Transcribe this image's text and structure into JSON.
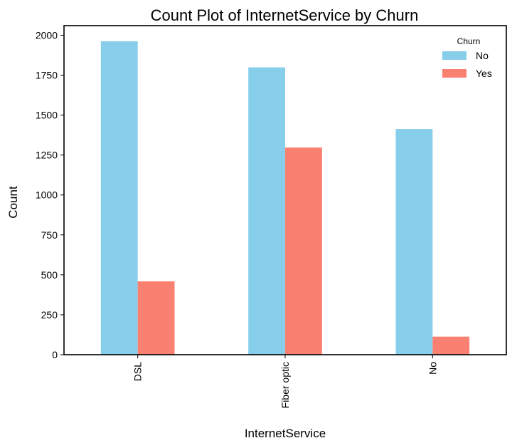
{
  "chart_data": {
    "type": "bar",
    "title": "Count Plot of InternetService by Churn",
    "xlabel": "InternetService",
    "ylabel": "Count",
    "categories": [
      "DSL",
      "Fiber optic",
      "No"
    ],
    "series": [
      {
        "name": "No",
        "values": [
          1962,
          1799,
          1413
        ],
        "color": "#87ceeb"
      },
      {
        "name": "Yes",
        "values": [
          459,
          1297,
          113
        ],
        "color": "#fa8072"
      }
    ],
    "ylim": [
      0,
      2060
    ],
    "yticks": [
      0,
      250,
      500,
      750,
      1000,
      1250,
      1500,
      1750,
      2000
    ],
    "x_tick_rotation": "vertical",
    "grid": false,
    "legend": {
      "title": "Churn",
      "position": "top-right",
      "entries": [
        "No",
        "Yes"
      ]
    }
  }
}
